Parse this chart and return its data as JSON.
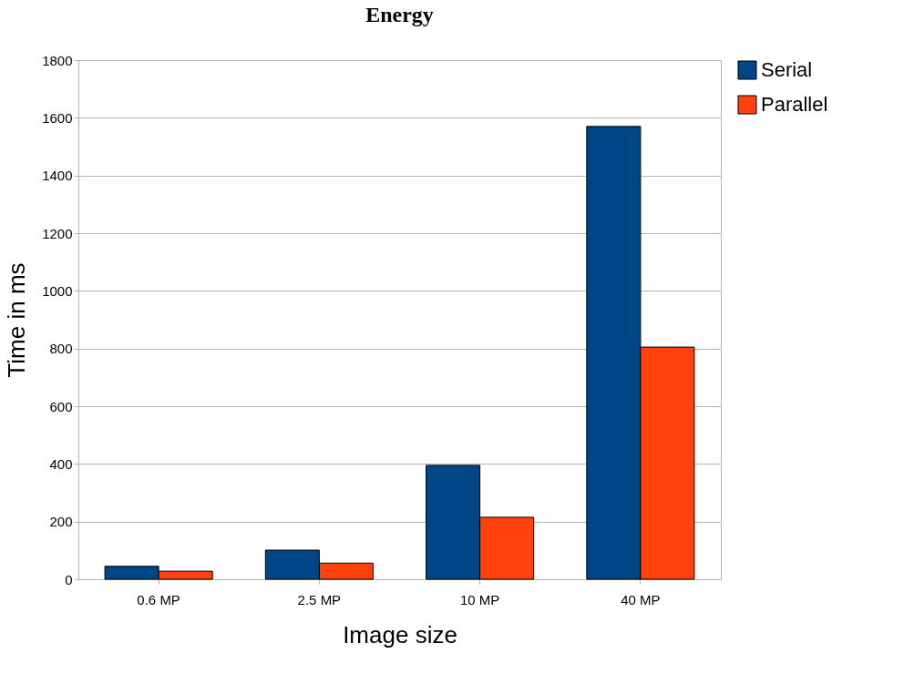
{
  "chart_data": {
    "type": "bar",
    "title": "Energy",
    "xlabel": "Image size",
    "ylabel": "Time in ms",
    "categories": [
      "0.6 MP",
      "2.5 MP",
      "10 MP",
      "40 MP"
    ],
    "series": [
      {
        "name": "Serial",
        "color": "#004586",
        "values": [
          45,
          101,
          395,
          1570
        ]
      },
      {
        "name": "Parallel",
        "color": "#ff420e",
        "values": [
          28,
          56,
          215,
          805
        ]
      }
    ],
    "ylim": [
      0,
      1800
    ],
    "yticks": [
      0,
      200,
      400,
      600,
      800,
      1000,
      1200,
      1400,
      1600,
      1800
    ],
    "grid": "y",
    "legend": "right"
  }
}
